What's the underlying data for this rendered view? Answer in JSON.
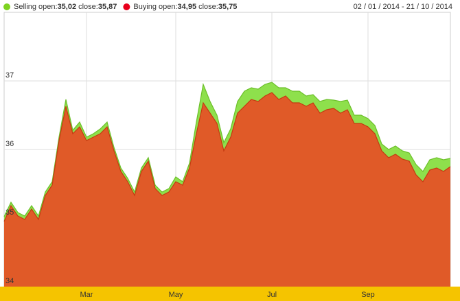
{
  "chart_data": {
    "type": "area",
    "date_range": "02 / 01 / 2014 - 21 / 10 / 2014",
    "categories": [
      null,
      null,
      null,
      null,
      null,
      null,
      null,
      null,
      null,
      null,
      null,
      null,
      "Mar",
      null,
      null,
      null,
      null,
      null,
      null,
      null,
      null,
      null,
      null,
      null,
      null,
      "May",
      null,
      null,
      null,
      null,
      null,
      null,
      null,
      null,
      null,
      null,
      null,
      null,
      null,
      "Jul",
      null,
      null,
      null,
      null,
      null,
      null,
      null,
      null,
      null,
      null,
      null,
      null,
      null,
      "Sep",
      null,
      null,
      null,
      null,
      null,
      null,
      null,
      null,
      null,
      null,
      null,
      null
    ],
    "series": [
      {
        "name": "Selling",
        "color": "#8ee04c",
        "stroke": "#6cbf2a",
        "open_text": "open:",
        "open_value": "35,02",
        "close_text": "close:",
        "close_value": "35,87",
        "values": [
          35.02,
          35.23,
          35.08,
          35.03,
          35.18,
          35.03,
          35.38,
          35.53,
          36.18,
          36.73,
          36.28,
          36.4,
          36.18,
          36.23,
          36.3,
          36.4,
          36.03,
          35.73,
          35.58,
          35.38,
          35.73,
          35.88,
          35.48,
          35.38,
          35.43,
          35.6,
          35.53,
          35.8,
          36.4,
          36.95,
          36.7,
          36.5,
          36.1,
          36.3,
          36.7,
          36.85,
          36.9,
          36.88,
          36.95,
          36.98,
          36.9,
          36.9,
          36.85,
          36.85,
          36.78,
          36.8,
          36.7,
          36.73,
          36.72,
          36.7,
          36.72,
          36.5,
          36.5,
          36.45,
          36.35,
          36.08,
          36.0,
          36.05,
          35.98,
          35.95,
          35.78,
          35.68,
          35.85,
          35.88,
          35.85,
          35.87
        ]
      },
      {
        "name": "Buying",
        "color": "#e05a28",
        "stroke": "#c43a10",
        "open_text": "open:",
        "open_value": "34,95",
        "close_text": "close:",
        "close_value": "35,75",
        "values": [
          34.95,
          35.18,
          35.03,
          34.98,
          35.13,
          34.98,
          35.33,
          35.48,
          36.13,
          36.63,
          36.23,
          36.33,
          36.13,
          36.18,
          36.23,
          36.33,
          35.98,
          35.68,
          35.53,
          35.33,
          35.68,
          35.83,
          35.43,
          35.33,
          35.38,
          35.53,
          35.48,
          35.73,
          36.23,
          36.68,
          36.53,
          36.38,
          35.98,
          36.18,
          36.53,
          36.63,
          36.73,
          36.7,
          36.78,
          36.83,
          36.73,
          36.78,
          36.68,
          36.68,
          36.63,
          36.68,
          36.53,
          36.58,
          36.6,
          36.53,
          36.58,
          36.38,
          36.38,
          36.33,
          36.23,
          35.98,
          35.88,
          35.93,
          35.86,
          35.83,
          35.63,
          35.53,
          35.7,
          35.73,
          35.68,
          35.75
        ]
      }
    ],
    "legend_marker_colors": [
      "#7ed321",
      "#e8001c"
    ],
    "ylim": [
      34,
      38
    ],
    "yticks": [
      34,
      35,
      36,
      37
    ],
    "grid": true,
    "band_color": "#f5c400"
  }
}
